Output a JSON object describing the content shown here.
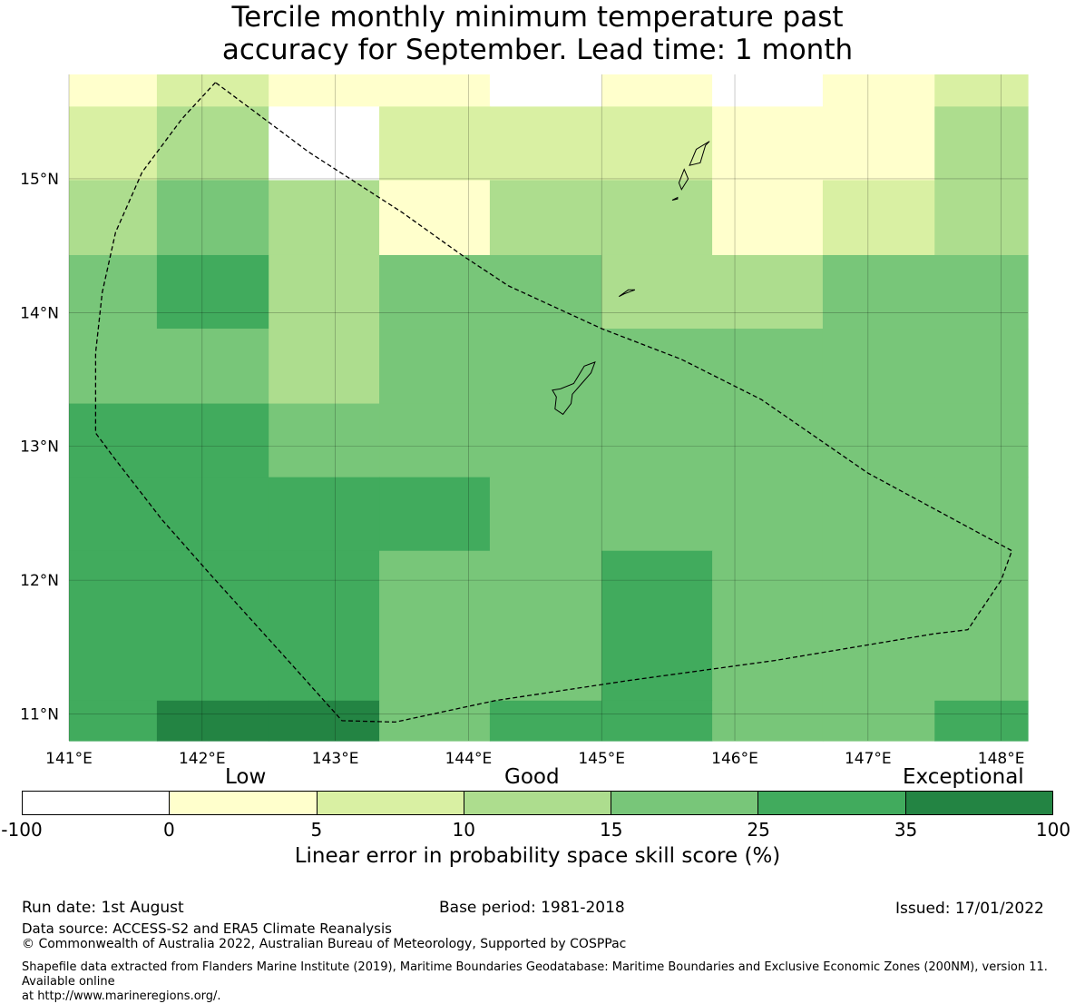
{
  "title": {
    "line1": "Tercile monthly minimum temperature past",
    "line2": "accuracy for September. Lead time: 1 month"
  },
  "map": {
    "lat_range": [
      10.8,
      15.78
    ],
    "lon_range": [
      141.0,
      148.2
    ],
    "lat_ticks": [
      "15°N",
      "14°N",
      "13°N",
      "12°N",
      "11°N"
    ],
    "lon_ticks": [
      "141°E",
      "142°E",
      "143°E",
      "144°E",
      "145°E",
      "146°E",
      "147°E",
      "148°E"
    ],
    "skill_colors": [
      "#ffffff",
      "#ffffcc",
      "#d9f0a3",
      "#addd8e",
      "#78c679",
      "#41ab5d",
      "#238443"
    ],
    "grid_columns": [
      141.0,
      141.66,
      142.5,
      143.33,
      144.16,
      145.0,
      145.83,
      146.66,
      147.5,
      148.2
    ],
    "grid_rows": [
      15.78,
      15.54,
      14.99,
      14.43,
      13.88,
      13.32,
      12.77,
      12.22,
      11.1,
      10.8
    ],
    "grid_classes": [
      [
        1,
        2,
        1,
        1,
        0,
        1,
        0,
        1,
        2
      ],
      [
        2,
        3,
        0,
        2,
        2,
        2,
        1,
        1,
        3
      ],
      [
        3,
        4,
        3,
        1,
        3,
        3,
        1,
        2,
        3
      ],
      [
        4,
        5,
        3,
        4,
        4,
        3,
        3,
        4,
        4
      ],
      [
        4,
        4,
        3,
        4,
        4,
        4,
        4,
        4,
        4
      ],
      [
        5,
        5,
        4,
        4,
        4,
        4,
        4,
        4,
        4
      ],
      [
        5,
        5,
        5,
        5,
        4,
        4,
        4,
        4,
        4
      ],
      [
        5,
        5,
        5,
        4,
        4,
        5,
        4,
        4,
        4
      ],
      [
        5,
        6,
        6,
        4,
        5,
        5,
        4,
        4,
        5
      ]
    ],
    "eez_boundary": [
      [
        142.1,
        15.72
      ],
      [
        141.85,
        15.45
      ],
      [
        141.55,
        15.05
      ],
      [
        141.35,
        14.6
      ],
      [
        141.25,
        14.15
      ],
      [
        141.2,
        13.7
      ],
      [
        141.2,
        13.1
      ],
      [
        141.35,
        12.9
      ],
      [
        141.7,
        12.45
      ],
      [
        142.1,
        12.0
      ],
      [
        142.6,
        11.45
      ],
      [
        143.05,
        10.95
      ],
      [
        143.45,
        10.94
      ],
      [
        144.2,
        11.1
      ],
      [
        145.2,
        11.25
      ],
      [
        146.3,
        11.4
      ],
      [
        147.5,
        11.6
      ],
      [
        147.75,
        11.63
      ],
      [
        148.0,
        12.0
      ],
      [
        148.08,
        12.22
      ],
      [
        147.0,
        12.8
      ],
      [
        146.2,
        13.35
      ],
      [
        145.6,
        13.65
      ],
      [
        145.0,
        13.88
      ],
      [
        144.3,
        14.2
      ],
      [
        143.95,
        14.43
      ],
      [
        143.5,
        14.75
      ],
      [
        142.8,
        15.2
      ],
      [
        142.1,
        15.72
      ]
    ],
    "islands": [
      [
        [
          144.95,
          13.63
        ],
        [
          144.87,
          13.6
        ],
        [
          144.79,
          13.47
        ],
        [
          144.69,
          13.43
        ],
        [
          144.63,
          13.42
        ],
        [
          144.66,
          13.37
        ],
        [
          144.65,
          13.28
        ],
        [
          144.71,
          13.24
        ],
        [
          144.77,
          13.32
        ],
        [
          144.78,
          13.39
        ],
        [
          144.85,
          13.47
        ],
        [
          144.92,
          13.55
        ],
        [
          144.95,
          13.63
        ]
      ],
      [
        [
          145.25,
          14.17
        ],
        [
          145.17,
          14.14
        ],
        [
          145.13,
          14.12
        ],
        [
          145.2,
          14.17
        ],
        [
          145.25,
          14.17
        ]
      ],
      [
        [
          145.81,
          15.28
        ],
        [
          145.71,
          15.22
        ],
        [
          145.66,
          15.1
        ],
        [
          145.74,
          15.12
        ],
        [
          145.78,
          15.25
        ],
        [
          145.81,
          15.28
        ]
      ],
      [
        [
          145.65,
          15.0
        ],
        [
          145.6,
          14.92
        ],
        [
          145.58,
          14.97
        ],
        [
          145.62,
          15.07
        ],
        [
          145.65,
          15.0
        ]
      ],
      [
        [
          145.57,
          14.85
        ],
        [
          145.53,
          14.84
        ],
        [
          145.57,
          14.86
        ],
        [
          145.57,
          14.85
        ]
      ]
    ]
  },
  "colorbar": {
    "category_low": "Low",
    "category_good": "Good",
    "category_exceptional": "Exceptional",
    "ticks": [
      "-100",
      "0",
      "5",
      "10",
      "15",
      "25",
      "35",
      "100"
    ],
    "colors": [
      "#ffffff",
      "#ffffcc",
      "#d9f0a3",
      "#addd8e",
      "#78c679",
      "#41ab5d",
      "#238443"
    ],
    "label": "Linear error in probability space skill score (%)"
  },
  "footer": {
    "run_date": "Run date: 1st August",
    "base_period": "Base period: 1981-2018",
    "issued": "Issued: 17/01/2022",
    "data_source": "Data source: ACCESS-S2 and ERA5 Climate Reanalysis",
    "copyright": "© Commonwealth of Australia 2022, Australian Bureau of Meteorology, Supported by COSPPac",
    "shapefile_line1": "Shapefile data extracted from Flanders Marine Institute (2019), Maritime Boundaries Geodatabase: Maritime Boundaries and Exclusive Economic Zones (200NM), version 11. Available online",
    "shapefile_line2": "at http://www.marineregions.org/."
  }
}
